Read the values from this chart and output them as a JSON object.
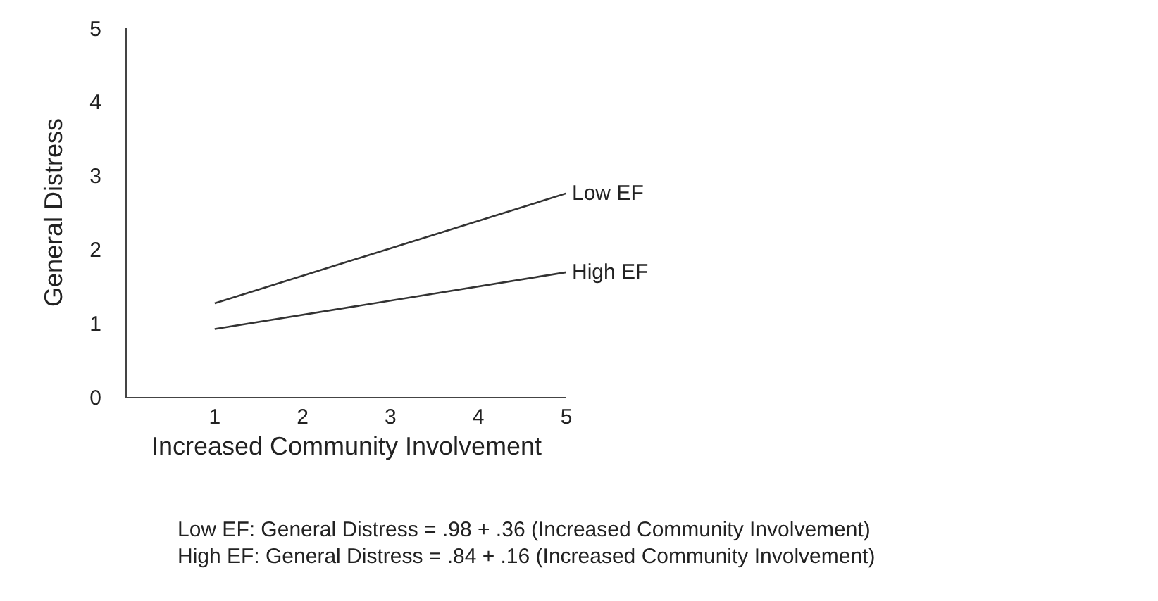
{
  "chart_data": {
    "type": "line",
    "xlabel": "Increased Community Involvement",
    "ylabel": "General Distress",
    "x": [
      1,
      5
    ],
    "series": [
      {
        "name": "Low EF",
        "color": "#333333",
        "values": [
          1.27,
          2.76
        ]
      },
      {
        "name": "High EF",
        "color": "#333333",
        "values": [
          0.92,
          1.69
        ]
      }
    ],
    "xlim": [
      0,
      5
    ],
    "xticks": [
      1,
      2,
      3,
      4,
      5
    ],
    "ylim": [
      0,
      5
    ],
    "yticks": [
      0,
      1,
      2,
      3,
      4,
      5
    ],
    "grid": false,
    "legend": false,
    "marker": "none",
    "line_style": "solid",
    "annotations": [
      "Low EF: General Distress = .98 + .36 (Increased Community Involvement)",
      "High EF: General Distress = .84 + .16 (Increased Community Involvement)"
    ]
  }
}
